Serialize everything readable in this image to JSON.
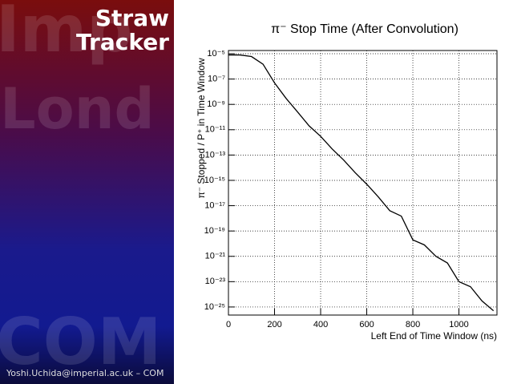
{
  "slide": {
    "title": "Straw Tracker",
    "watermarks": [
      "Imp",
      "Lond",
      "COM"
    ],
    "footer": "Yoshi.Uchida@imperial.ac.uk – COM"
  },
  "chart_data": {
    "type": "line",
    "title": "π⁻ Stop Time (After Convolution)",
    "x_label": "Left End of Time Window (ns)",
    "y_label": "π⁻ Stopped / P⁺ in Time Window",
    "x": [
      0,
      50,
      100,
      150,
      200,
      250,
      300,
      350,
      400,
      450,
      500,
      550,
      600,
      650,
      700,
      750,
      800,
      850,
      900,
      950,
      1000,
      1050,
      1100,
      1150
    ],
    "series": [
      {
        "name": "π⁻ stop time",
        "color": "#000000",
        "values": [
          8e-06,
          8e-06,
          6e-06,
          1.5e-06,
          5e-08,
          3e-09,
          2.5e-10,
          2e-11,
          3e-12,
          3e-13,
          4e-14,
          4e-15,
          5e-16,
          5e-17,
          4e-18,
          1.5e-18,
          2e-20,
          8e-21,
          1e-21,
          3e-22,
          1e-23,
          4e-24,
          3e-25,
          5e-26
        ]
      }
    ],
    "xlim": [
      0,
      1165
    ],
    "xticks": [
      0,
      200,
      400,
      600,
      800,
      1000
    ],
    "ylim": [
      2.3e-26,
      1.8e-05
    ],
    "log_y": true,
    "yticks": [
      {
        "value": 1e-05,
        "label": "10⁻⁵"
      },
      {
        "value": 1e-07,
        "label": "10⁻⁷"
      },
      {
        "value": 1e-09,
        "label": "10⁻⁹"
      },
      {
        "value": 1e-11,
        "label": "10⁻¹¹"
      },
      {
        "value": 1e-13,
        "label": "10⁻¹³"
      },
      {
        "value": 1e-15,
        "label": "10⁻¹⁵"
      },
      {
        "value": 1e-17,
        "label": "10⁻¹⁷"
      },
      {
        "value": 1e-19,
        "label": "10⁻¹⁹"
      },
      {
        "value": 1e-21,
        "label": "10⁻²¹"
      },
      {
        "value": 1e-23,
        "label": "10⁻²³"
      },
      {
        "value": 1e-25,
        "label": "10⁻²⁵"
      }
    ],
    "grid": true
  }
}
